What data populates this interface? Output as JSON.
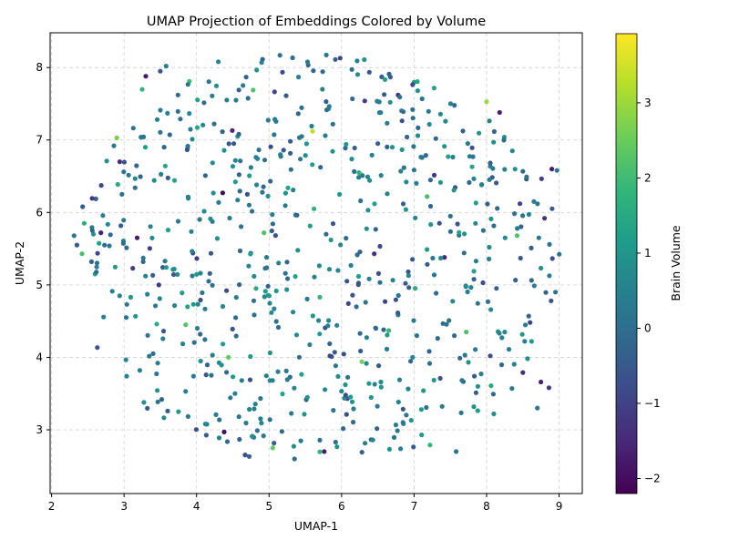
{
  "chart_data": {
    "type": "scatter",
    "title": "UMAP Projection of Embeddings Colored by Volume",
    "xlabel": "UMAP-1",
    "ylabel": "UMAP-2",
    "xlim": [
      1.98,
      9.32
    ],
    "ylim": [
      2.12,
      8.48
    ],
    "xticks": [
      2,
      3,
      4,
      5,
      6,
      7,
      8,
      9
    ],
    "yticks": [
      3,
      4,
      5,
      6,
      7,
      8
    ],
    "grid": true,
    "colormap": "viridis",
    "colorbar": {
      "label": "Brain Volume",
      "range": [
        -2.2,
        3.92
      ],
      "ticks": [
        -2,
        -1,
        0,
        1,
        2,
        3
      ]
    },
    "points_seed": 42,
    "points": [
      {
        "x": 2.31,
        "y": 5.68,
        "v": 0.1
      },
      {
        "x": 2.35,
        "y": 5.55,
        "v": -0.5
      },
      {
        "x": 2.45,
        "y": 5.85,
        "v": 1.6
      },
      {
        "x": 2.55,
        "y": 5.32,
        "v": -0.2
      },
      {
        "x": 2.42,
        "y": 5.43,
        "v": 2.1
      },
      {
        "x": 2.6,
        "y": 5.15,
        "v": 1.3
      },
      {
        "x": 2.68,
        "y": 5.72,
        "v": -1.6
      },
      {
        "x": 2.86,
        "y": 6.92,
        "v": 0.3
      },
      {
        "x": 2.9,
        "y": 7.03,
        "v": 2.7
      },
      {
        "x": 2.94,
        "y": 6.7,
        "v": -1.4
      },
      {
        "x": 3.03,
        "y": 4.55,
        "v": 0.2
      },
      {
        "x": 3.12,
        "y": 5.23,
        "v": -1.1
      },
      {
        "x": 3.18,
        "y": 5.65,
        "v": -1.7
      },
      {
        "x": 3.25,
        "y": 7.7,
        "v": 1.9
      },
      {
        "x": 3.3,
        "y": 7.88,
        "v": -1.8
      },
      {
        "x": 3.4,
        "y": 4.05,
        "v": 0.0
      },
      {
        "x": 3.45,
        "y": 4.46,
        "v": 1.6
      },
      {
        "x": 3.48,
        "y": 5.0,
        "v": -1.2
      },
      {
        "x": 3.5,
        "y": 7.95,
        "v": -0.6
      },
      {
        "x": 3.52,
        "y": 3.42,
        "v": -0.3
      },
      {
        "x": 3.58,
        "y": 8.02,
        "v": 0.4
      },
      {
        "x": 3.75,
        "y": 3.25,
        "v": 1.1
      },
      {
        "x": 3.8,
        "y": 4.89,
        "v": 1.2
      },
      {
        "x": 3.85,
        "y": 4.45,
        "v": 2.3
      },
      {
        "x": 3.9,
        "y": 7.81,
        "v": 2.0
      },
      {
        "x": 3.95,
        "y": 5.44,
        "v": -0.9
      },
      {
        "x": 4.05,
        "y": 4.32,
        "v": -0.2
      },
      {
        "x": 4.12,
        "y": 3.08,
        "v": 0.9
      },
      {
        "x": 4.22,
        "y": 4.03,
        "v": 0.4
      },
      {
        "x": 4.3,
        "y": 8.08,
        "v": 0.6
      },
      {
        "x": 4.36,
        "y": 6.27,
        "v": -2.1
      },
      {
        "x": 4.38,
        "y": 2.97,
        "v": -1.9
      },
      {
        "x": 4.44,
        "y": 4.0,
        "v": 2.4
      },
      {
        "x": 4.53,
        "y": 3.5,
        "v": 0.5
      },
      {
        "x": 4.6,
        "y": 5.47,
        "v": -0.2
      },
      {
        "x": 4.7,
        "y": 6.25,
        "v": -0.7
      },
      {
        "x": 4.78,
        "y": 7.69,
        "v": 2.2
      },
      {
        "x": 4.82,
        "y": 4.95,
        "v": 1.5
      },
      {
        "x": 4.93,
        "y": 5.72,
        "v": 2.2
      },
      {
        "x": 5.0,
        "y": 4.85,
        "v": -0.1
      },
      {
        "x": 5.05,
        "y": 2.75,
        "v": 2.4
      },
      {
        "x": 5.15,
        "y": 8.17,
        "v": 0.1
      },
      {
        "x": 5.2,
        "y": 6.86,
        "v": -0.5
      },
      {
        "x": 5.26,
        "y": 6.34,
        "v": 1.4
      },
      {
        "x": 5.38,
        "y": 4.31,
        "v": 0.8
      },
      {
        "x": 5.45,
        "y": 7.05,
        "v": 0.3
      },
      {
        "x": 5.6,
        "y": 7.12,
        "v": 3.3
      },
      {
        "x": 5.62,
        "y": 6.05,
        "v": 1.7
      },
      {
        "x": 5.7,
        "y": 4.83,
        "v": 1.8
      },
      {
        "x": 5.76,
        "y": 2.7,
        "v": -1.7
      },
      {
        "x": 5.82,
        "y": 7.43,
        "v": 1.0
      },
      {
        "x": 5.95,
        "y": 5.2,
        "v": 0.6
      },
      {
        "x": 5.98,
        "y": 8.13,
        "v": -0.9
      },
      {
        "x": 6.08,
        "y": 3.43,
        "v": -0.8
      },
      {
        "x": 6.18,
        "y": 6.89,
        "v": -0.3
      },
      {
        "x": 6.24,
        "y": 6.55,
        "v": 1.6
      },
      {
        "x": 6.27,
        "y": 6.52,
        "v": 2.0
      },
      {
        "x": 6.28,
        "y": 3.94,
        "v": 2.6
      },
      {
        "x": 6.32,
        "y": 7.54,
        "v": -1.1
      },
      {
        "x": 6.45,
        "y": 5.43,
        "v": -1.4
      },
      {
        "x": 6.5,
        "y": 6.95,
        "v": -0.4
      },
      {
        "x": 6.6,
        "y": 4.77,
        "v": -1.0
      },
      {
        "x": 6.65,
        "y": 4.37,
        "v": 1.9
      },
      {
        "x": 6.7,
        "y": 6.9,
        "v": 1.0
      },
      {
        "x": 6.78,
        "y": 7.62,
        "v": -1.3
      },
      {
        "x": 6.8,
        "y": 3.69,
        "v": 0.5
      },
      {
        "x": 6.92,
        "y": 5.18,
        "v": -0.6
      },
      {
        "x": 6.98,
        "y": 4.0,
        "v": 0.7
      },
      {
        "x": 7.05,
        "y": 7.68,
        "v": 0.9
      },
      {
        "x": 7.1,
        "y": 3.28,
        "v": 1.2
      },
      {
        "x": 7.18,
        "y": 6.22,
        "v": 2.1
      },
      {
        "x": 7.22,
        "y": 2.79,
        "v": 1.8
      },
      {
        "x": 7.3,
        "y": 7.02,
        "v": -0.2
      },
      {
        "x": 7.36,
        "y": 3.71,
        "v": -0.6
      },
      {
        "x": 7.42,
        "y": 5.38,
        "v": -1.5
      },
      {
        "x": 7.47,
        "y": 6.77,
        "v": 1.4
      },
      {
        "x": 7.58,
        "y": 2.7,
        "v": 0.2
      },
      {
        "x": 7.6,
        "y": 5.84,
        "v": -0.7
      },
      {
        "x": 7.72,
        "y": 4.35,
        "v": 2.2
      },
      {
        "x": 7.8,
        "y": 6.63,
        "v": 1.4
      },
      {
        "x": 7.88,
        "y": 3.6,
        "v": 0.9
      },
      {
        "x": 7.95,
        "y": 5.03,
        "v": -0.8
      },
      {
        "x": 8.0,
        "y": 7.53,
        "v": 3.0
      },
      {
        "x": 8.05,
        "y": 4.02,
        "v": -0.8
      },
      {
        "x": 8.1,
        "y": 3.22,
        "v": 0.8
      },
      {
        "x": 8.18,
        "y": 7.38,
        "v": -1.6
      },
      {
        "x": 8.25,
        "y": 4.35,
        "v": 0.7
      },
      {
        "x": 8.35,
        "y": 3.57,
        "v": 0.3
      },
      {
        "x": 8.42,
        "y": 5.68,
        "v": 2.2
      },
      {
        "x": 8.5,
        "y": 3.79,
        "v": -1.4
      },
      {
        "x": 8.55,
        "y": 6.46,
        "v": -0.7
      },
      {
        "x": 8.62,
        "y": 4.22,
        "v": 1.1
      },
      {
        "x": 8.7,
        "y": 3.3,
        "v": 0.2
      },
      {
        "x": 8.75,
        "y": 3.66,
        "v": -1.6
      },
      {
        "x": 8.8,
        "y": 5.92,
        "v": -1.3
      },
      {
        "x": 8.86,
        "y": 3.58,
        "v": -1.2
      },
      {
        "x": 8.9,
        "y": 6.6,
        "v": -1.7
      },
      {
        "x": 8.95,
        "y": 4.9,
        "v": 0.1
      },
      {
        "x": 8.97,
        "y": 6.58,
        "v": 0.3
      },
      {
        "x": 8.6,
        "y": 4.48,
        "v": -1.0
      }
    ]
  }
}
